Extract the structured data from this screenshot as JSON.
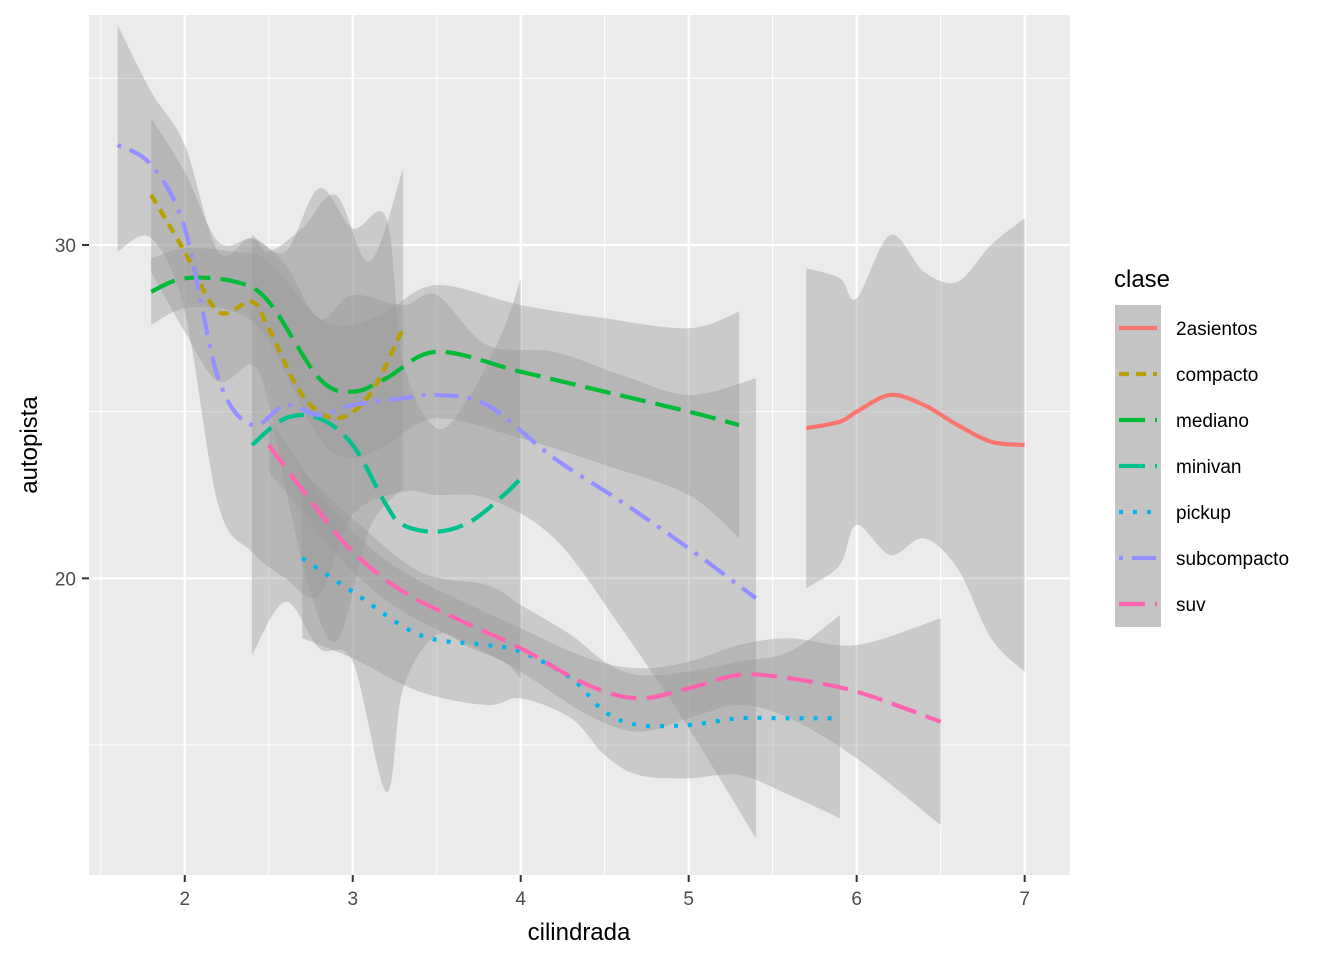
{
  "chart_data": {
    "type": "line",
    "xlabel": "cilindrada",
    "ylabel": "autopista",
    "xlim": [
      1.43,
      7.27
    ],
    "ylim": [
      11.1,
      36.9
    ],
    "x_ticks": [
      2,
      3,
      4,
      5,
      6,
      7
    ],
    "y_ticks": [
      20,
      30
    ],
    "grid": true,
    "legend": {
      "title": "clase",
      "position": "right"
    },
    "series": [
      {
        "name": "2asientos",
        "color": "#F8766D",
        "dash": "solid",
        "x": [
          5.7,
          5.9,
          6.0,
          6.2,
          6.4,
          6.6,
          6.8,
          7.0
        ],
        "y": [
          24.5,
          24.7,
          25.0,
          25.5,
          25.2,
          24.6,
          24.1,
          24.0
        ],
        "upper": [
          29.3,
          29.0,
          28.4,
          30.3,
          29.2,
          28.9,
          30.0,
          30.8
        ],
        "lower": [
          19.7,
          20.4,
          21.6,
          20.7,
          21.2,
          20.3,
          18.2,
          17.2
        ]
      },
      {
        "name": "compacto",
        "color": "#B79F00",
        "dash": "short-dash",
        "x": [
          1.8,
          2.0,
          2.2,
          2.4,
          2.5,
          2.7,
          2.9,
          3.1,
          3.3
        ],
        "y": [
          31.5,
          29.8,
          28.0,
          28.3,
          27.5,
          25.5,
          24.8,
          25.5,
          27.5
        ],
        "upper": [
          33.8,
          32.2,
          30.1,
          30.2,
          29.8,
          30.5,
          31.5,
          29.5,
          32.3
        ],
        "lower": [
          29.2,
          27.4,
          25.9,
          26.4,
          25.2,
          20.5,
          18.1,
          21.5,
          22.7
        ]
      },
      {
        "name": "mediano",
        "color": "#00BA38",
        "dash": "long-dash",
        "x": [
          1.8,
          2.0,
          2.3,
          2.5,
          2.8,
          3.0,
          3.2,
          3.5,
          4.0,
          4.5,
          5.0,
          5.3
        ],
        "y": [
          28.6,
          29.0,
          28.9,
          28.3,
          26.0,
          25.6,
          26.0,
          26.8,
          26.2,
          25.6,
          25.0,
          24.6
        ],
        "upper": [
          29.6,
          29.9,
          29.8,
          29.5,
          27.8,
          27.6,
          28.0,
          28.8,
          28.2,
          27.8,
          27.5,
          28.0
        ],
        "lower": [
          27.6,
          28.1,
          28.0,
          27.1,
          24.2,
          23.6,
          24.0,
          24.8,
          24.2,
          23.4,
          22.5,
          21.2
        ]
      },
      {
        "name": "minivan",
        "color": "#00C08B",
        "dash": "long-dash",
        "x": [
          2.4,
          2.6,
          2.8,
          3.0,
          3.2,
          3.3,
          3.5,
          3.7,
          3.9,
          4.0
        ],
        "y": [
          24.0,
          24.8,
          24.8,
          24.0,
          22.2,
          21.6,
          21.4,
          21.7,
          22.5,
          23.0
        ],
        "upper": [
          30.3,
          29.8,
          31.7,
          30.5,
          30.8,
          26.5,
          24.5,
          25.5,
          27.5,
          29.0
        ],
        "lower": [
          17.7,
          19.3,
          17.9,
          17.5,
          13.6,
          16.7,
          18.3,
          17.9,
          17.5,
          17.0
        ]
      },
      {
        "name": "pickup",
        "color": "#00B4EF",
        "dash": "dotted",
        "x": [
          2.7,
          3.0,
          3.4,
          3.8,
          4.0,
          4.3,
          4.5,
          4.7,
          5.0,
          5.3,
          5.6,
          5.9
        ],
        "y": [
          20.6,
          19.6,
          18.3,
          18.0,
          17.8,
          17.0,
          16.0,
          15.6,
          15.6,
          15.8,
          15.8,
          15.8
        ],
        "upper": [
          23.2,
          21.8,
          20.2,
          19.8,
          19.2,
          18.3,
          17.5,
          17.1,
          17.2,
          17.5,
          17.8,
          18.9
        ],
        "lower": [
          18.2,
          17.6,
          16.6,
          16.2,
          16.4,
          15.8,
          14.7,
          14.1,
          14.0,
          14.1,
          13.5,
          12.8
        ]
      },
      {
        "name": "subcompacto",
        "color": "#9590FF",
        "dash": "dot-dash",
        "x": [
          1.6,
          1.8,
          2.0,
          2.2,
          2.4,
          2.6,
          2.8,
          3.0,
          3.3,
          3.5,
          3.8,
          4.2,
          4.6,
          5.0,
          5.4
        ],
        "y": [
          33.0,
          32.4,
          30.5,
          26.0,
          24.6,
          25.2,
          24.9,
          25.2,
          25.4,
          25.5,
          25.2,
          23.6,
          22.3,
          20.9,
          19.4
        ],
        "upper": [
          36.6,
          34.6,
          33.0,
          29.8,
          30.2,
          29.4,
          27.8,
          28.5,
          28.2,
          28.5,
          27.0,
          26.8,
          26.1,
          25.5,
          26.0
        ],
        "lower": [
          29.8,
          30.2,
          28.0,
          22.2,
          20.8,
          20.0,
          19.5,
          21.9,
          22.6,
          22.5,
          22.4,
          21.2,
          18.5,
          15.5,
          12.2
        ]
      },
      {
        "name": "suv",
        "color": "#FF64B0",
        "dash": "long-dash",
        "x": [
          2.5,
          2.8,
          3.0,
          3.3,
          3.7,
          4.0,
          4.4,
          4.7,
          5.0,
          5.3,
          5.6,
          6.0,
          6.5
        ],
        "y": [
          24.0,
          22.0,
          20.8,
          19.6,
          18.6,
          17.9,
          16.8,
          16.4,
          16.7,
          17.1,
          17.0,
          16.6,
          15.7
        ],
        "upper": [
          24.8,
          22.6,
          21.4,
          20.2,
          19.2,
          18.5,
          17.6,
          17.3,
          17.5,
          18.0,
          18.2,
          18.0,
          18.8
        ],
        "lower": [
          23.2,
          21.4,
          20.2,
          19.0,
          18.0,
          17.2,
          15.9,
          15.4,
          15.8,
          16.2,
          15.8,
          14.6,
          12.6
        ]
      }
    ]
  }
}
